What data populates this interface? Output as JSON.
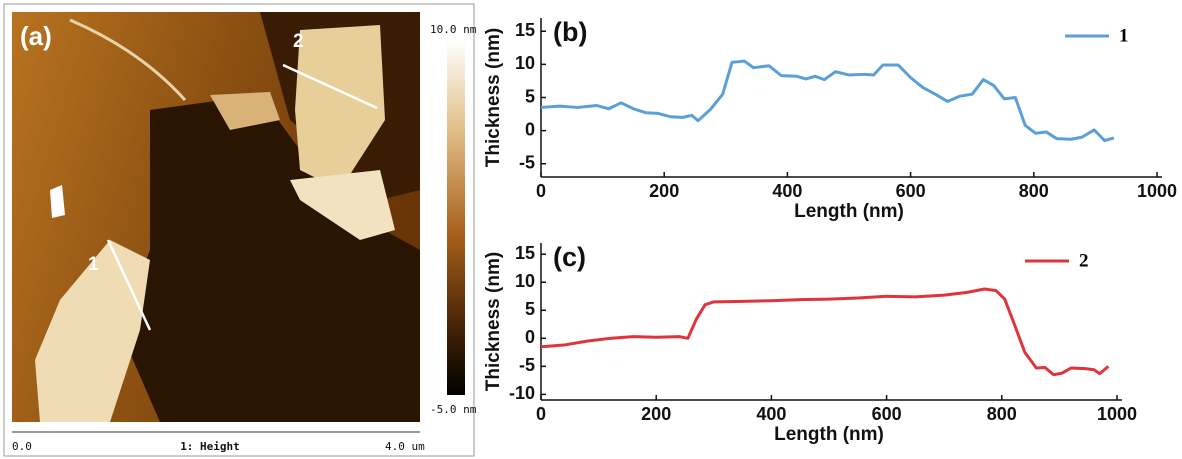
{
  "image": {
    "panel_label": "(a)",
    "line_labels": [
      "1",
      "2"
    ],
    "colorbar_max": "10.0 nm",
    "colorbar_min": "-5.0 nm",
    "scale_start": "0.0",
    "channel": "1: Height",
    "scale_end": "4.0 um"
  },
  "chart_data": [
    {
      "type": "line",
      "panel_label": "(b)",
      "x_label": "Length (nm)",
      "y_label": "Thickness (nm)",
      "x": [
        0,
        30,
        60,
        90,
        110,
        130,
        150,
        170,
        190,
        210,
        230,
        245,
        255,
        275,
        295,
        310,
        330,
        345,
        370,
        390,
        415,
        430,
        445,
        460,
        478,
        500,
        525,
        540,
        555,
        580,
        600,
        620,
        640,
        660,
        680,
        700,
        718,
        735,
        752,
        770,
        786,
        803,
        820,
        837,
        860,
        878,
        898,
        915,
        930
      ],
      "series": [
        {
          "name": "1",
          "color": "#5b9fd8",
          "values": [
            3.5,
            3.7,
            3.5,
            3.8,
            3.3,
            4.2,
            3.3,
            2.7,
            2.6,
            2.1,
            2.0,
            2.3,
            1.5,
            3.2,
            5.5,
            10.3,
            10.5,
            9.5,
            9.8,
            8.3,
            8.2,
            7.8,
            8.2,
            7.7,
            8.9,
            8.4,
            8.5,
            8.4,
            9.9,
            9.9,
            8.0,
            6.5,
            5.5,
            4.4,
            5.2,
            5.5,
            7.7,
            6.8,
            4.8,
            5.0,
            0.8,
            -0.4,
            -0.2,
            -1.2,
            -1.3,
            -1.0,
            0.1,
            -1.5,
            -1.1
          ]
        }
      ],
      "xlim": [
        0,
        1000
      ],
      "ylim": [
        -7,
        17
      ],
      "xticks": [
        0,
        200,
        400,
        600,
        800,
        1000
      ],
      "yticks": [
        -5,
        0,
        5,
        10,
        15
      ]
    },
    {
      "type": "line",
      "panel_label": "(c)",
      "x_label": "Length (nm)",
      "y_label": "Thickness (nm)",
      "x": [
        0,
        40,
        80,
        120,
        160,
        200,
        240,
        255,
        270,
        285,
        300,
        350,
        400,
        450,
        500,
        550,
        600,
        650,
        700,
        740,
        770,
        790,
        805,
        820,
        840,
        860,
        875,
        890,
        905,
        920,
        945,
        960,
        970,
        985
      ],
      "series": [
        {
          "name": "2",
          "color": "#e0343c",
          "values": [
            -1.5,
            -1.2,
            -0.5,
            0,
            0.3,
            0.2,
            0.3,
            0,
            3.5,
            6.0,
            6.5,
            6.6,
            6.7,
            6.9,
            7.0,
            7.2,
            7.5,
            7.4,
            7.7,
            8.2,
            8.8,
            8.5,
            7.0,
            3.0,
            -2.5,
            -5.3,
            -5.2,
            -6.5,
            -6.2,
            -5.3,
            -5.4,
            -5.6,
            -6.3,
            -5.0
          ]
        }
      ],
      "xlim": [
        0,
        1000
      ],
      "ylim": [
        -11,
        17
      ],
      "xticks": [
        0,
        200,
        400,
        600,
        800,
        1000
      ],
      "yticks": [
        -10,
        -5,
        0,
        5,
        10,
        15
      ]
    }
  ]
}
